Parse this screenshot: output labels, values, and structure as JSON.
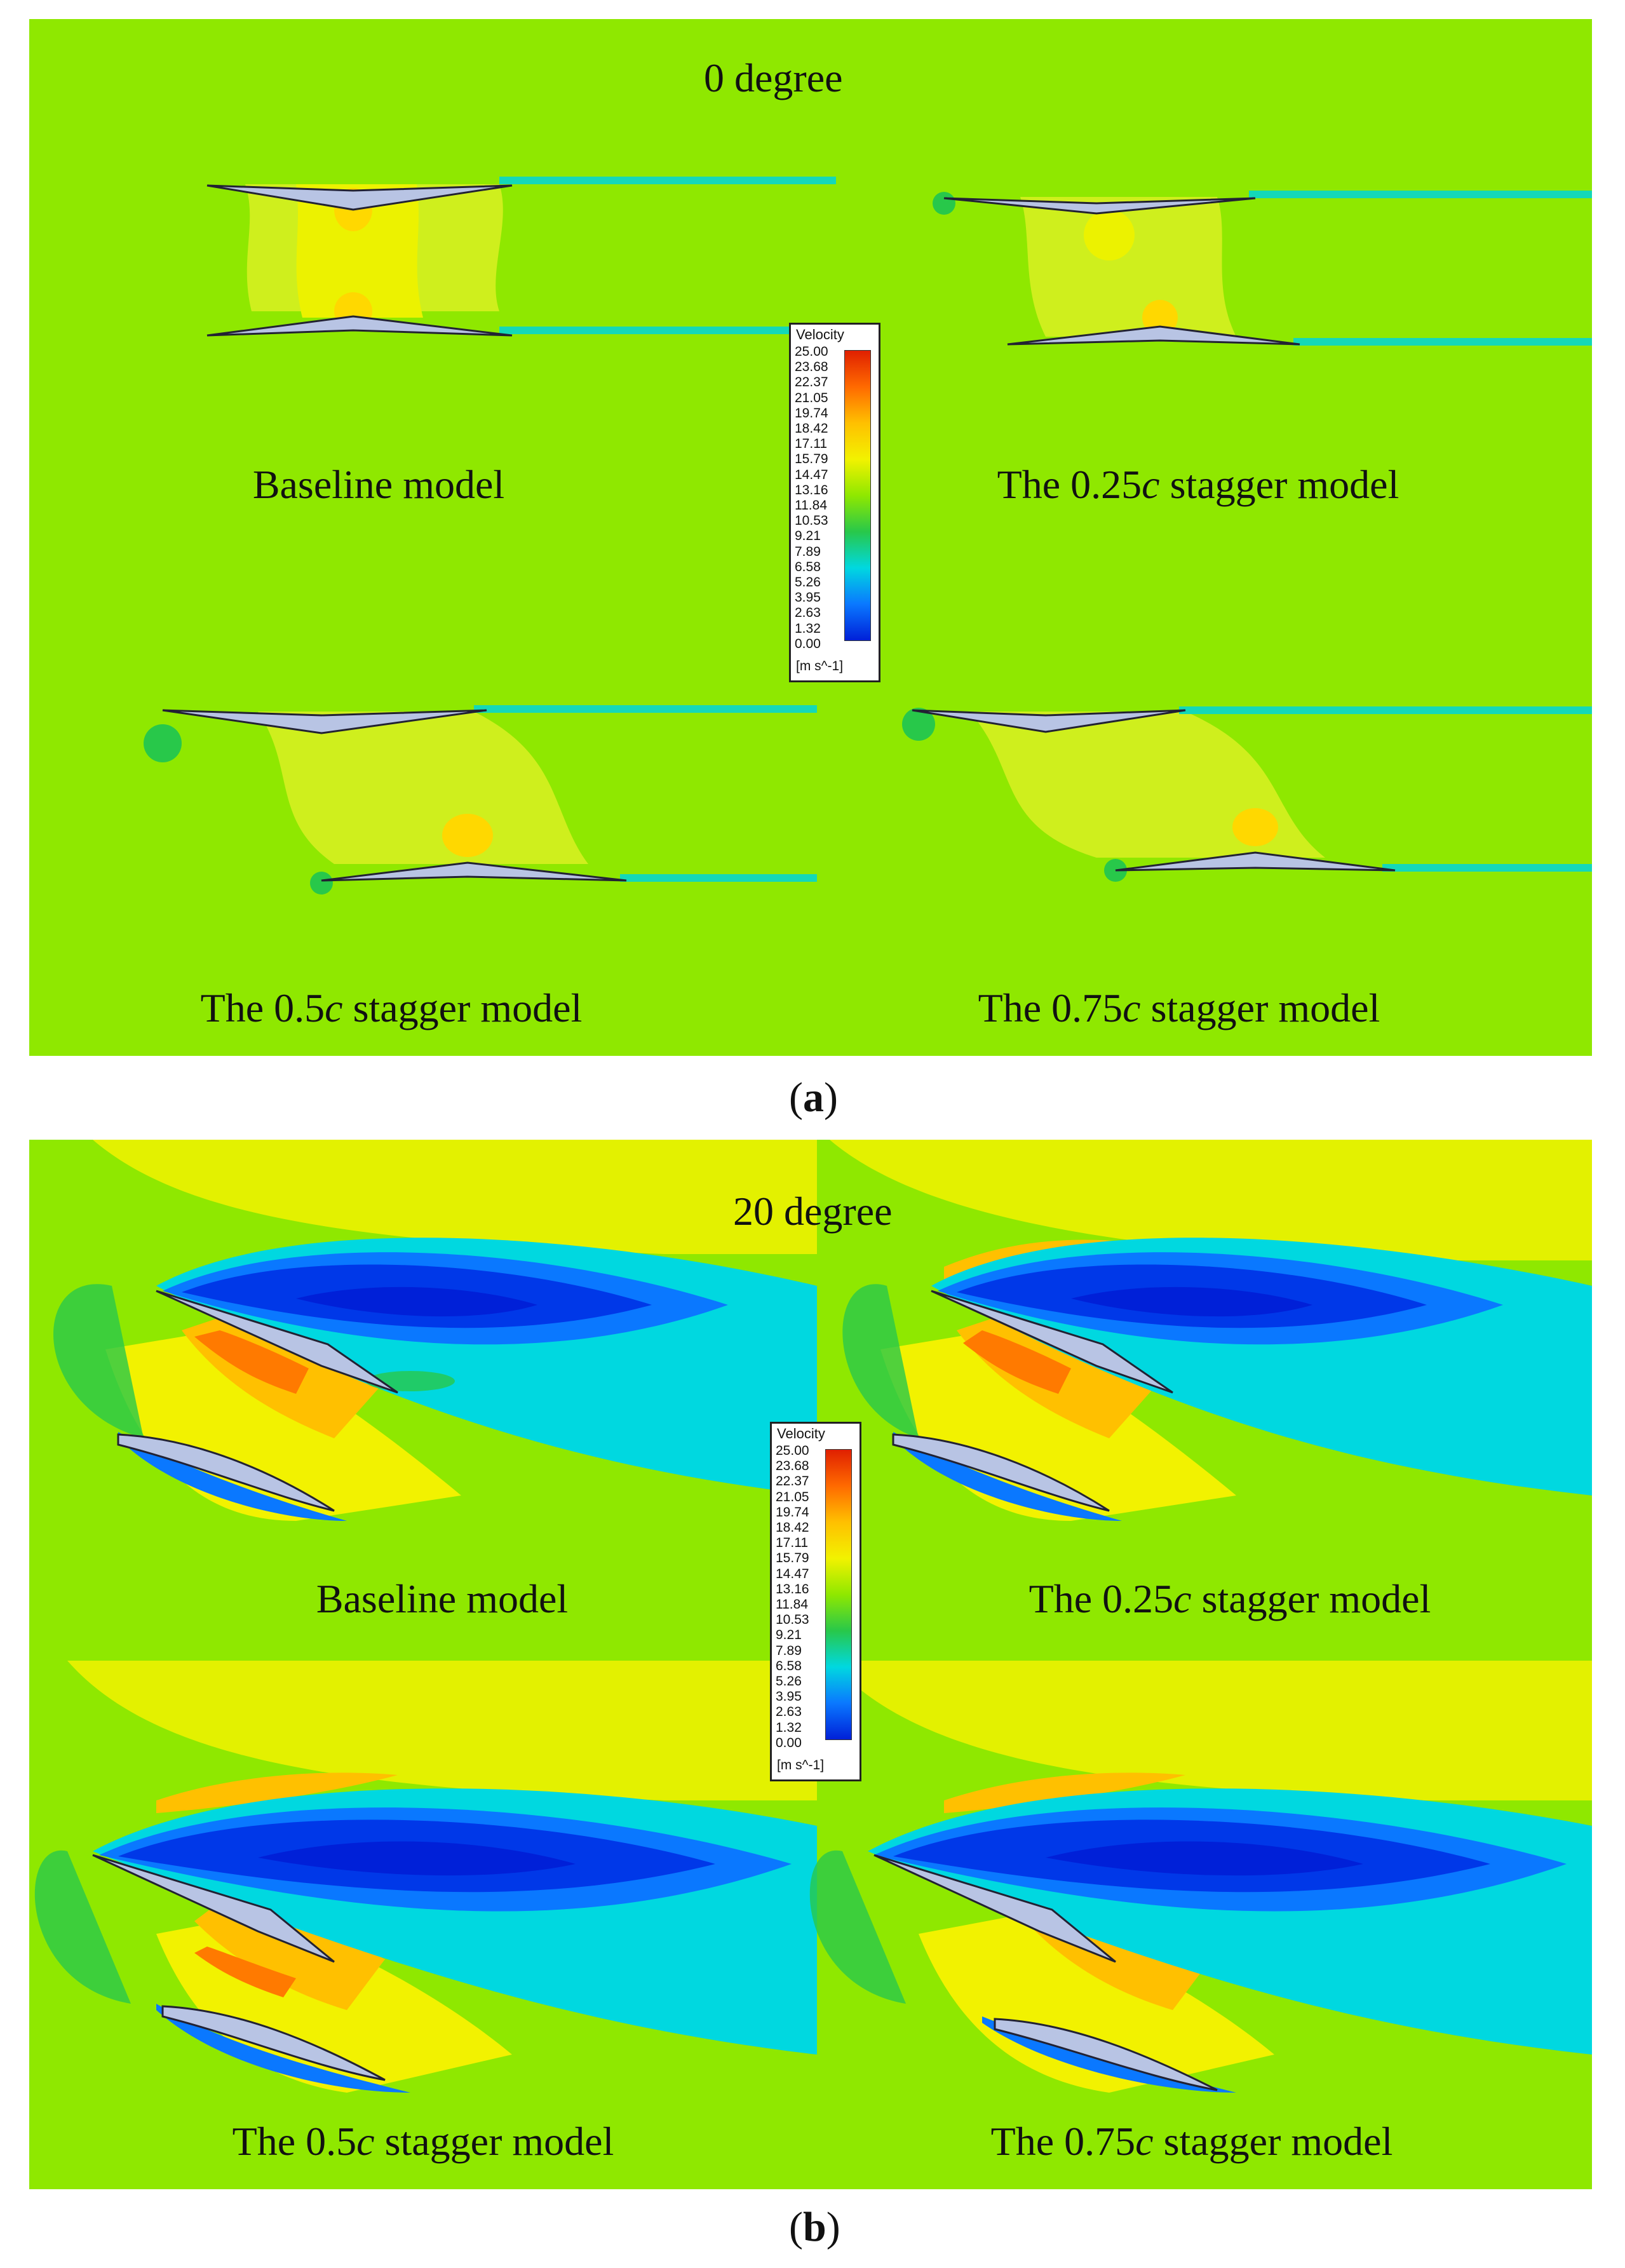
{
  "figure_a": {
    "heading": "0 degree",
    "caption": "a",
    "panel_labels": [
      {
        "text": "Baseline model",
        "stagger": ""
      },
      {
        "prefix": "The 0.25",
        "italic": "c",
        "suffix": " stagger model"
      },
      {
        "prefix": "The 0.5",
        "italic": "c",
        "suffix": " stagger model"
      },
      {
        "prefix": "The 0.75",
        "italic": "c",
        "suffix": " stagger model"
      }
    ]
  },
  "figure_b": {
    "heading": "20 degree",
    "caption": "b",
    "panel_labels": [
      {
        "text": "Baseline model"
      },
      {
        "prefix": "The 0.25",
        "italic": "c",
        "suffix": " stagger model"
      },
      {
        "prefix": "The 0.5",
        "italic": "c",
        "suffix": " stagger model"
      },
      {
        "prefix": "The 0.75",
        "italic": "c",
        "suffix": " stagger model"
      }
    ]
  },
  "legend": {
    "title": "Velocity",
    "ticks": [
      "25.00",
      "23.68",
      "22.37",
      "21.05",
      "19.74",
      "18.42",
      "17.11",
      "15.79",
      "14.47",
      "13.16",
      "11.84",
      "10.53",
      "9.21",
      "7.89",
      "6.58",
      "5.26",
      "3.95",
      "2.63",
      "1.32",
      "0.00"
    ],
    "unit": "[m s^-1]"
  },
  "colors": {
    "field_free_stream": "#8fe800",
    "field_fast": "#f2f200",
    "field_faster": "#ffc000",
    "field_peak": "#ff6a00",
    "field_slow": "#28c84a",
    "field_slower": "#00d8e0",
    "field_wake": "#0a78ff",
    "field_core": "#0020d8",
    "airfoil_fill": "#b8c4e4"
  }
}
